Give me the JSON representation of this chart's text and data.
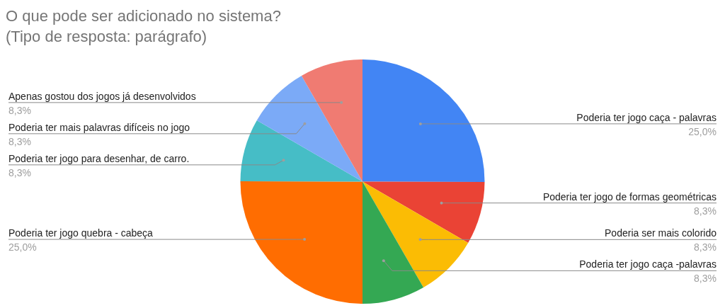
{
  "chart_data": {
    "type": "pie",
    "title": "O que pode ser adicionado no sistema?\n(Tipo de resposta: parágrafo)",
    "categories": [
      "Poderia ter jogo caça - palavras",
      "Poderia ter jogo de formas geométricas",
      "Poderia ser mais colorido",
      "Poderia ter jogo caça -palavras",
      "Poderia ter jogo quebra - cabeça",
      "Poderia ter jogo para desenhar, de carro.",
      "Poderia ter mais palavras difíceis no jogo",
      "Apenas gostou dos jogos já desenvolvidos"
    ],
    "values": [
      25.0,
      8.3,
      8.3,
      8.3,
      25.0,
      8.3,
      8.3,
      8.3
    ],
    "value_labels": [
      "25,0%",
      "8,3%",
      "8,3%",
      "8,3%",
      "25,0%",
      "8,3%",
      "8,3%",
      "8,3%"
    ],
    "colors": [
      "#4285f4",
      "#ea4335",
      "#fbbc04",
      "#34a853",
      "#ff6d01",
      "#46bdc6",
      "#7baaf7",
      "#f07b72"
    ],
    "legend": false
  }
}
